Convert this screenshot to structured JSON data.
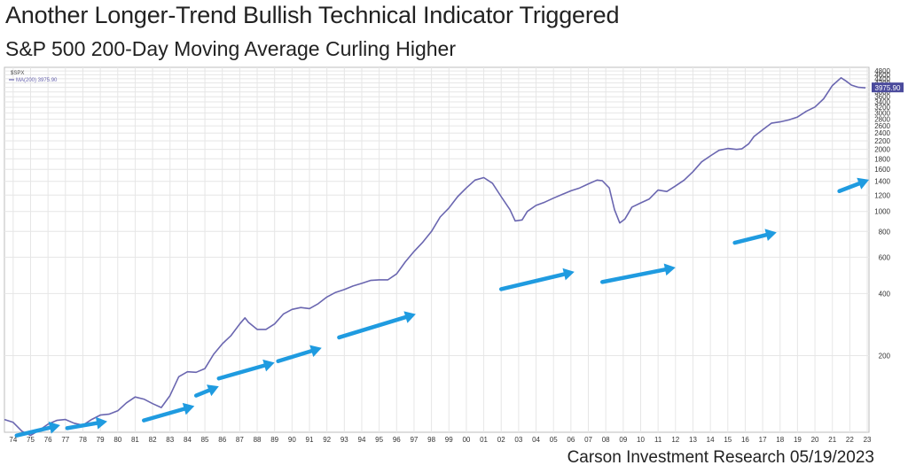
{
  "title": "Another Longer-Trend Bullish Technical Indicator Triggered",
  "subtitle": "S&P 500 200-Day Moving Average Curling Higher",
  "credit": "Carson Investment Research 05/19/2023",
  "colors": {
    "line": "#6a66b0",
    "arrow": "#1f9be0",
    "grid": "#e6e6e6",
    "last_value_box": "#4a4a9c"
  },
  "chart_data": {
    "type": "line",
    "scale": "log",
    "grid": true,
    "legend": {
      "symbol": "$SPX",
      "entry": "MA(200) 3975.90",
      "placement": "top-left"
    },
    "last_value_label": "3975.90",
    "ylim": [
      85,
      5000
    ],
    "yticks": [
      200,
      400,
      600,
      800,
      1000,
      1200,
      1400,
      1600,
      1800,
      2000,
      2200,
      2400,
      2600,
      2800,
      3000,
      3200,
      3400,
      3600,
      3800,
      4000,
      4200,
      4400,
      4600,
      4800
    ],
    "xlim": [
      1974,
      2023.6
    ],
    "xtick_labels": [
      "74",
      "75",
      "76",
      "77",
      "78",
      "79",
      "80",
      "81",
      "82",
      "83",
      "84",
      "85",
      "86",
      "87",
      "88",
      "89",
      "90",
      "91",
      "92",
      "93",
      "94",
      "95",
      "96",
      "97",
      "98",
      "99",
      "00",
      "01",
      "02",
      "03",
      "04",
      "05",
      "06",
      "07",
      "08",
      "09",
      "10",
      "11",
      "12",
      "13",
      "14",
      "15",
      "16",
      "17",
      "18",
      "19",
      "20",
      "21",
      "22",
      "23"
    ],
    "series": [
      {
        "x": [
          1974.0,
          1974.5,
          1975.0,
          1975.5,
          1976.0,
          1976.5,
          1977.0,
          1977.5,
          1978.0,
          1978.5,
          1979.0,
          1979.5,
          1980.0,
          1980.5,
          1981.0,
          1981.5,
          1982.0,
          1982.5,
          1983.0,
          1983.5,
          1984.0,
          1984.5,
          1985.0,
          1985.5,
          1986.0,
          1986.5,
          1987.0,
          1987.5,
          1987.8,
          1988.0,
          1988.5,
          1989.0,
          1989.5,
          1990.0,
          1990.5,
          1991.0,
          1991.5,
          1992.0,
          1992.5,
          1993.0,
          1993.5,
          1994.0,
          1994.5,
          1995.0,
          1995.5,
          1996.0,
          1996.5,
          1997.0,
          1997.5,
          1998.0,
          1998.5,
          1999.0,
          1999.5,
          2000.0,
          2000.5,
          2001.0,
          2001.5,
          2002.0,
          2002.5,
          2003.0,
          2003.3,
          2003.7,
          2004.0,
          2004.5,
          2005.0,
          2005.5,
          2006.0,
          2006.5,
          2007.0,
          2007.5,
          2008.0,
          2008.3,
          2008.7,
          2009.0,
          2009.3,
          2009.6,
          2010.0,
          2010.5,
          2011.0,
          2011.5,
          2012.0,
          2012.5,
          2013.0,
          2013.5,
          2014.0,
          2014.5,
          2015.0,
          2015.5,
          2016.0,
          2016.3,
          2016.7,
          2017.0,
          2017.5,
          2018.0,
          2018.5,
          2019.0,
          2019.5,
          2020.0,
          2020.5,
          2021.0,
          2021.5,
          2022.0,
          2022.3,
          2022.6,
          2023.0,
          2023.4
        ],
        "y": [
          98,
          95,
          86,
          82,
          87,
          93,
          97,
          98,
          94,
          92,
          98,
          103,
          104,
          108,
          118,
          126,
          123,
          117,
          112,
          128,
          158,
          167,
          166,
          173,
          203,
          228,
          250,
          285,
          305,
          290,
          268,
          268,
          285,
          318,
          335,
          342,
          338,
          357,
          385,
          405,
          418,
          435,
          448,
          463,
          466,
          466,
          498,
          570,
          640,
          710,
          800,
          940,
          1040,
          1180,
          1300,
          1420,
          1460,
          1370,
          1180,
          1020,
          900,
          910,
          1000,
          1070,
          1110,
          1160,
          1210,
          1260,
          1300,
          1360,
          1420,
          1410,
          1300,
          1020,
          880,
          920,
          1050,
          1100,
          1150,
          1270,
          1250,
          1330,
          1420,
          1560,
          1740,
          1860,
          1980,
          2020,
          2000,
          2010,
          2130,
          2310,
          2490,
          2680,
          2720,
          2780,
          2870,
          3060,
          3210,
          3520,
          4080,
          4450,
          4280,
          4100,
          4000,
          3976
        ]
      }
    ],
    "arrows": [
      {
        "from": [
          1974.7,
          82
        ],
        "to": [
          1977.2,
          92
        ]
      },
      {
        "from": [
          1977.6,
          89
        ],
        "to": [
          1979.9,
          96
        ]
      },
      {
        "from": [
          1982.0,
          97
        ],
        "to": [
          1984.9,
          114
        ]
      },
      {
        "from": [
          1985.0,
          128
        ],
        "to": [
          1986.3,
          142
        ]
      },
      {
        "from": [
          1986.3,
          155
        ],
        "to": [
          1989.5,
          185
        ]
      },
      {
        "from": [
          1989.7,
          188
        ],
        "to": [
          1992.2,
          218
        ]
      },
      {
        "from": [
          1993.2,
          245
        ],
        "to": [
          1997.6,
          318
        ]
      },
      {
        "from": [
          2002.5,
          420
        ],
        "to": [
          2006.7,
          510
        ]
      },
      {
        "from": [
          2008.3,
          455
        ],
        "to": [
          2012.5,
          535
        ]
      },
      {
        "from": [
          2015.9,
          705
        ],
        "to": [
          2018.3,
          792
        ]
      },
      {
        "from": [
          2021.9,
          1255
        ],
        "to": [
          2023.6,
          1425
        ]
      }
    ]
  }
}
